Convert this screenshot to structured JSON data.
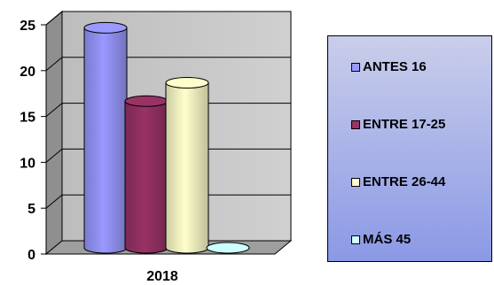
{
  "chart_data": {
    "type": "bar",
    "style": "3d-cylinder",
    "categories": [
      "2018"
    ],
    "series": [
      {
        "name": "ANTES 16",
        "values": [
          24
        ],
        "color": "#9999ff"
      },
      {
        "name": "ENTRE 17-25",
        "values": [
          16
        ],
        "color": "#993366"
      },
      {
        "name": "ENTRE 26-44",
        "values": [
          18
        ],
        "color": "#ffffcc"
      },
      {
        "name": "MÁS 45",
        "values": [
          0
        ],
        "color": "#ccffff"
      }
    ],
    "ylim": [
      0,
      25
    ],
    "yticks": [
      "0",
      "5",
      "10",
      "15",
      "20",
      "25"
    ],
    "grid": true,
    "legend_position": "right"
  }
}
